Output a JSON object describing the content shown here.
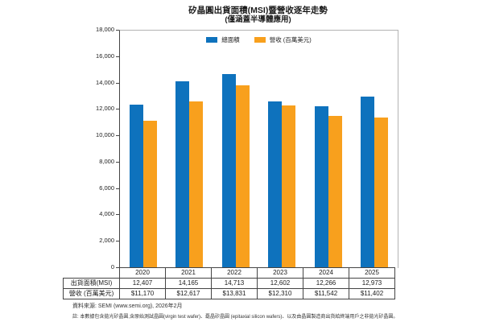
{
  "title": "矽晶圓出貨面積(MSI)暨營收逐年走勢",
  "subtitle": "(僅涵蓋半導體應用)",
  "colors": {
    "area_blue": "#0E72BD",
    "revenue_orange": "#F8A01D",
    "axis": "#444444",
    "frame": "#b3b3b3"
  },
  "chart_data": {
    "type": "bar",
    "title": "矽晶圓出貨面積(MSI)暨營收逐年走勢",
    "subtitle": "(僅涵蓋半導體應用)",
    "categories": [
      "2020",
      "2021",
      "2022",
      "2023",
      "2024",
      "2025"
    ],
    "series": [
      {
        "name": "總面積",
        "color": "#0E72BD",
        "values": [
          12407,
          14165,
          14713,
          12602,
          12266,
          12973
        ]
      },
      {
        "name": "營收 (百萬美元)",
        "color": "#F8A01D",
        "values": [
          11170,
          12617,
          13831,
          12310,
          11542,
          11402
        ]
      }
    ],
    "ylim": [
      0,
      18000
    ],
    "ytick_interval": 2000,
    "ytick_labels": [
      "0",
      "2,000",
      "4,000",
      "6,000",
      "8,000",
      "10,000",
      "12,000",
      "14,000",
      "16,000",
      "18,000"
    ],
    "grid": false,
    "legend_position": "top-center"
  },
  "legend": {
    "items": [
      {
        "label": "總面積",
        "color": "#0E72BD"
      },
      {
        "label": "營收 (百萬美元)",
        "color": "#F8A01D"
      }
    ]
  },
  "table": {
    "year_header": [
      "2020",
      "2021",
      "2022",
      "2023",
      "2024",
      "2025"
    ],
    "rows": [
      {
        "label": "出貨面積(MSI)",
        "values": [
          "12,407",
          "14,165",
          "14,713",
          "12,602",
          "12,266",
          "12,973"
        ]
      },
      {
        "label": "營收 (百萬美元)",
        "values": [
          "$11,170",
          "$12,617",
          "$13,831",
          "$12,310",
          "$11,542",
          "$11,402"
        ]
      }
    ]
  },
  "footer": {
    "source": "資料來源: SEMI (www.semi.org), 2026年2月",
    "note": "註: 本數據包含拋光矽晶圓,含原始測試晶圓(virgin test wafer)、磊晶矽晶圓 (epitaxial silicon wafers)、以及由晶圓製造商出貨給終端用戶之非拋光矽晶圓。"
  }
}
